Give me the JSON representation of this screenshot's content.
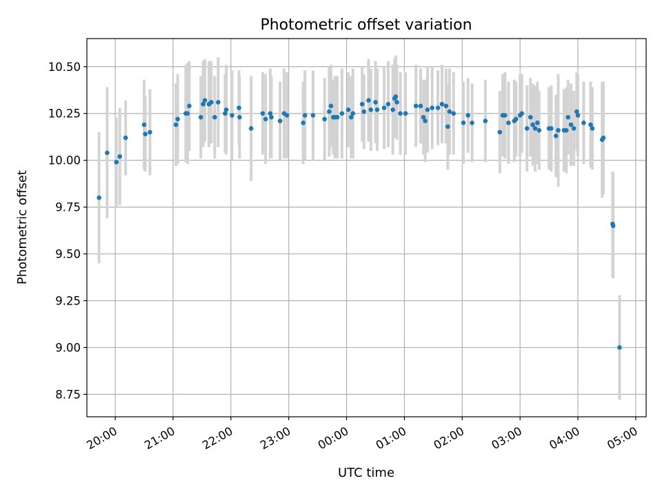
{
  "chart_data": {
    "type": "scatter",
    "title": "Photometric offset variation",
    "xlabel": "UTC time",
    "ylabel": "Photometric offset",
    "x_tick_labels": [
      "20:00",
      "21:00",
      "22:00",
      "23:00",
      "00:00",
      "01:00",
      "02:00",
      "03:00",
      "04:00",
      "05:00"
    ],
    "y_tick_labels": [
      "8.75",
      "9.00",
      "9.25",
      "9.50",
      "9.75",
      "10.00",
      "10.25",
      "10.50"
    ],
    "x_ticks_hours": [
      20,
      21,
      22,
      23,
      24,
      25,
      26,
      27,
      28,
      29
    ],
    "y_ticks": [
      8.75,
      9.0,
      9.25,
      9.5,
      9.75,
      10.0,
      10.25,
      10.5
    ],
    "xlim_hours": [
      19.51,
      29.18
    ],
    "ylim": [
      8.63,
      10.65
    ],
    "grid": true,
    "colors": {
      "points": "#1f77b4",
      "errorbars": "#d3d3d3",
      "grid": "#b0b0b0"
    },
    "series": [
      {
        "points": [
          [
            19.72,
            9.8,
            0.35
          ],
          [
            19.86,
            10.04,
            0.35
          ],
          [
            20.02,
            9.99,
            0.24
          ],
          [
            20.08,
            10.02,
            0.26
          ],
          [
            20.18,
            10.12,
            0.2
          ],
          [
            20.5,
            10.19,
            0.24
          ],
          [
            20.52,
            10.14,
            0.2
          ],
          [
            20.6,
            10.15,
            0.23
          ],
          [
            21.05,
            10.19,
            0.22
          ],
          [
            21.08,
            10.22,
            0.24
          ],
          [
            21.22,
            10.25,
            0.26
          ],
          [
            21.28,
            10.29,
            0.24
          ],
          [
            21.25,
            10.25,
            0.27
          ],
          [
            21.48,
            10.23,
            0.22
          ],
          [
            21.52,
            10.3,
            0.23
          ],
          [
            21.55,
            10.32,
            0.22
          ],
          [
            21.62,
            10.3,
            0.23
          ],
          [
            21.66,
            10.31,
            0.22
          ],
          [
            21.72,
            10.23,
            0.22
          ],
          [
            21.78,
            10.31,
            0.24
          ],
          [
            21.92,
            10.27,
            0.24
          ],
          [
            21.9,
            10.25,
            0.21
          ],
          [
            22.02,
            10.24,
            0.24
          ],
          [
            22.14,
            10.28,
            0.2
          ],
          [
            22.15,
            10.23,
            0.22
          ],
          [
            22.35,
            10.17,
            0.28
          ],
          [
            22.55,
            10.25,
            0.22
          ],
          [
            22.6,
            10.22,
            0.24
          ],
          [
            22.68,
            10.25,
            0.24
          ],
          [
            22.7,
            10.23,
            0.22
          ],
          [
            22.85,
            10.21,
            0.21
          ],
          [
            22.92,
            10.25,
            0.24
          ],
          [
            22.97,
            10.24,
            0.23
          ],
          [
            23.25,
            10.2,
            0.22
          ],
          [
            23.28,
            10.24,
            0.24
          ],
          [
            23.42,
            10.24,
            0.24
          ],
          [
            23.62,
            10.22,
            0.22
          ],
          [
            23.7,
            10.26,
            0.24
          ],
          [
            23.73,
            10.29,
            0.22
          ],
          [
            23.77,
            10.23,
            0.2
          ],
          [
            23.8,
            10.23,
            0.22
          ],
          [
            23.84,
            10.23,
            0.22
          ],
          [
            23.92,
            10.25,
            0.24
          ],
          [
            24.03,
            10.27,
            0.2
          ],
          [
            24.08,
            10.23,
            0.22
          ],
          [
            24.11,
            10.25,
            0.24
          ],
          [
            24.27,
            10.3,
            0.2
          ],
          [
            24.3,
            10.26,
            0.2
          ],
          [
            24.38,
            10.32,
            0.22
          ],
          [
            24.42,
            10.27,
            0.22
          ],
          [
            24.5,
            10.31,
            0.22
          ],
          [
            24.53,
            10.27,
            0.22
          ],
          [
            24.65,
            10.28,
            0.22
          ],
          [
            24.72,
            10.3,
            0.23
          ],
          [
            24.8,
            10.27,
            0.24
          ],
          [
            24.83,
            10.33,
            0.21
          ],
          [
            24.85,
            10.34,
            0.22
          ],
          [
            24.87,
            10.31,
            0.2
          ],
          [
            24.93,
            10.25,
            0.22
          ],
          [
            25.02,
            10.25,
            0.22
          ],
          [
            25.2,
            10.29,
            0.22
          ],
          [
            25.28,
            10.29,
            0.2
          ],
          [
            25.33,
            10.23,
            0.2
          ],
          [
            25.36,
            10.21,
            0.22
          ],
          [
            25.4,
            10.27,
            0.23
          ],
          [
            25.48,
            10.28,
            0.22
          ],
          [
            25.58,
            10.28,
            0.2
          ],
          [
            25.65,
            10.3,
            0.21
          ],
          [
            25.72,
            10.29,
            0.2
          ],
          [
            25.75,
            10.18,
            0.23
          ],
          [
            25.78,
            10.26,
            0.23
          ],
          [
            25.85,
            10.25,
            0.22
          ],
          [
            26.02,
            10.2,
            0.22
          ],
          [
            26.1,
            10.24,
            0.2
          ],
          [
            26.17,
            10.2,
            0.21
          ],
          [
            26.4,
            10.21,
            0.22
          ],
          [
            26.65,
            10.15,
            0.22
          ],
          [
            26.7,
            10.24,
            0.22
          ],
          [
            26.72,
            10.24,
            0.22
          ],
          [
            26.74,
            10.24,
            0.23
          ],
          [
            26.8,
            10.2,
            0.22
          ],
          [
            26.9,
            10.21,
            0.22
          ],
          [
            26.93,
            10.22,
            0.2
          ],
          [
            27.0,
            10.24,
            0.22
          ],
          [
            27.03,
            10.25,
            0.21
          ],
          [
            27.12,
            10.17,
            0.23
          ],
          [
            27.18,
            10.23,
            0.21
          ],
          [
            27.22,
            10.19,
            0.22
          ],
          [
            27.26,
            10.17,
            0.23
          ],
          [
            27.3,
            10.2,
            0.22
          ],
          [
            27.33,
            10.16,
            0.21
          ],
          [
            27.5,
            10.17,
            0.22
          ],
          [
            27.54,
            10.17,
            0.23
          ],
          [
            27.62,
            10.13,
            0.22
          ],
          [
            27.66,
            10.16,
            0.3
          ],
          [
            27.76,
            10.16,
            0.22
          ],
          [
            27.8,
            10.16,
            0.23
          ],
          [
            27.83,
            10.23,
            0.2
          ],
          [
            27.88,
            10.19,
            0.22
          ],
          [
            27.93,
            10.17,
            0.2
          ],
          [
            27.98,
            10.26,
            0.21
          ],
          [
            28.0,
            10.24,
            0.22
          ],
          [
            28.1,
            10.2,
            0.22
          ],
          [
            28.22,
            10.19,
            0.23
          ],
          [
            28.25,
            10.17,
            0.22
          ],
          [
            28.42,
            10.11,
            0.31
          ],
          [
            28.44,
            10.12,
            0.3
          ],
          [
            28.6,
            9.66,
            0.28
          ],
          [
            28.61,
            9.65,
            0.28
          ],
          [
            28.72,
            9.0,
            0.28
          ]
        ]
      }
    ]
  }
}
